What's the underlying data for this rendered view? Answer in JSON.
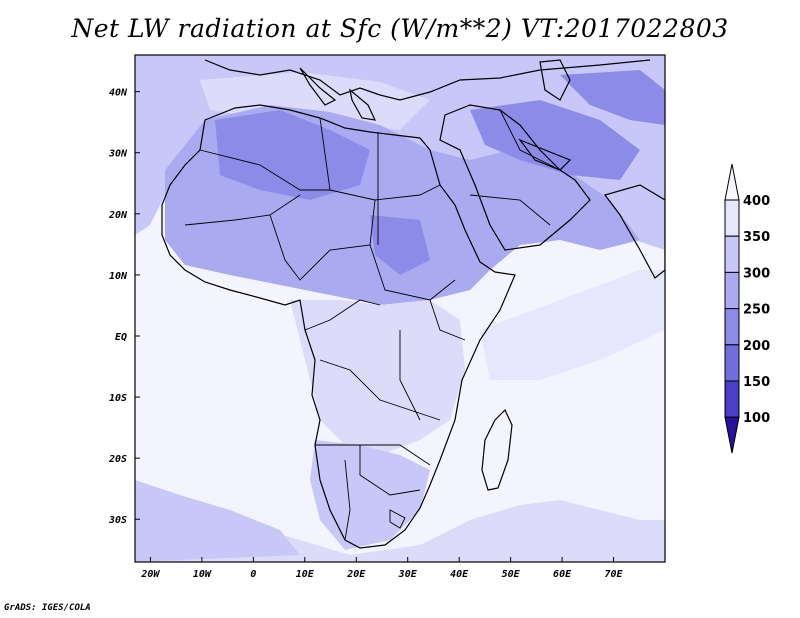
{
  "title": "Net LW radiation at Sfc (W/m**2) VT:2017022803",
  "credit": "GrADS: IGES/COLA",
  "map": {
    "lon_range": [
      -23,
      80
    ],
    "lat_range": [
      -37,
      46
    ],
    "x_ticks": [
      "20W",
      "10W",
      "0",
      "10E",
      "20E",
      "30E",
      "40E",
      "50E",
      "60E",
      "70E"
    ],
    "y_ticks": [
      "40N",
      "30N",
      "20N",
      "10N",
      "EQ",
      "10S",
      "20S",
      "30S"
    ],
    "ocean_color": "#f4f4fe"
  },
  "colorbar": {
    "labels": [
      "400",
      "350",
      "300",
      "250",
      "200",
      "150",
      "100"
    ],
    "colors": [
      "#e6e6fc",
      "#c8c8f8",
      "#aaaaf0",
      "#8c8ce8",
      "#6e6edc",
      "#4a40c8",
      "#2a10a0"
    ]
  }
}
